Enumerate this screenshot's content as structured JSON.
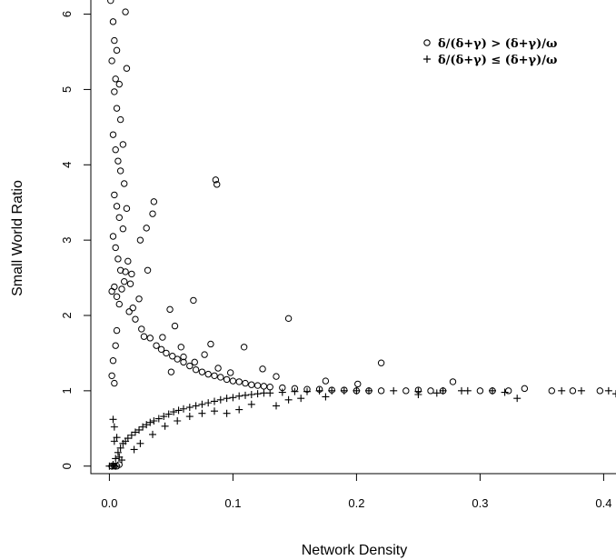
{
  "chart_data": {
    "type": "scatter",
    "title": "",
    "xlabel": "Network Density",
    "ylabel": "Small World Ratio",
    "xlim": [
      -0.015,
      0.41
    ],
    "ylim": [
      -0.1,
      6.2
    ],
    "x_ticks": [
      0.0,
      0.1,
      0.2,
      0.3,
      0.4
    ],
    "x_tick_labels": [
      "0.0",
      "0.1",
      "0.2",
      "0.3",
      "0.4"
    ],
    "y_ticks": [
      0,
      1,
      2,
      3,
      4,
      5,
      6
    ],
    "y_tick_labels": [
      "0",
      "1",
      "2",
      "3",
      "4",
      "5",
      "6"
    ],
    "grid": false,
    "legend_position": "top-right",
    "series": [
      {
        "name": "δ/(δ+γ) > (δ+γ)/ω",
        "marker": "circle",
        "points": [
          [
            0.001,
            6.18
          ],
          [
            0.003,
            5.9
          ],
          [
            0.006,
            5.52
          ],
          [
            0.013,
            6.03
          ],
          [
            0.002,
            5.38
          ],
          [
            0.004,
            5.65
          ],
          [
            0.005,
            5.14
          ],
          [
            0.008,
            5.07
          ],
          [
            0.014,
            5.28
          ],
          [
            0.004,
            4.97
          ],
          [
            0.006,
            4.75
          ],
          [
            0.009,
            4.6
          ],
          [
            0.011,
            4.27
          ],
          [
            0.003,
            4.4
          ],
          [
            0.005,
            4.2
          ],
          [
            0.007,
            4.05
          ],
          [
            0.009,
            3.92
          ],
          [
            0.012,
            3.75
          ],
          [
            0.004,
            3.6
          ],
          [
            0.006,
            3.45
          ],
          [
            0.008,
            3.3
          ],
          [
            0.011,
            3.15
          ],
          [
            0.014,
            3.42
          ],
          [
            0.003,
            3.05
          ],
          [
            0.005,
            2.9
          ],
          [
            0.007,
            2.75
          ],
          [
            0.009,
            2.6
          ],
          [
            0.012,
            2.45
          ],
          [
            0.015,
            2.72
          ],
          [
            0.018,
            2.55
          ],
          [
            0.004,
            2.38
          ],
          [
            0.006,
            2.25
          ],
          [
            0.01,
            2.35
          ],
          [
            0.013,
            2.58
          ],
          [
            0.017,
            2.42
          ],
          [
            0.002,
            2.32
          ],
          [
            0.008,
            2.15
          ],
          [
            0.016,
            2.05
          ],
          [
            0.019,
            2.1
          ],
          [
            0.021,
            1.95
          ],
          [
            0.024,
            2.22
          ],
          [
            0.025,
            3.0
          ],
          [
            0.03,
            3.16
          ],
          [
            0.031,
            2.6
          ],
          [
            0.035,
            3.35
          ],
          [
            0.036,
            3.51
          ],
          [
            0.026,
            1.82
          ],
          [
            0.028,
            1.72
          ],
          [
            0.033,
            1.7
          ],
          [
            0.038,
            1.6
          ],
          [
            0.042,
            1.55
          ],
          [
            0.046,
            1.5
          ],
          [
            0.051,
            1.46
          ],
          [
            0.055,
            1.42
          ],
          [
            0.06,
            1.38
          ],
          [
            0.065,
            1.33
          ],
          [
            0.07,
            1.28
          ],
          [
            0.075,
            1.25
          ],
          [
            0.08,
            1.22
          ],
          [
            0.085,
            1.2
          ],
          [
            0.086,
            3.8
          ],
          [
            0.087,
            3.74
          ],
          [
            0.068,
            2.2
          ],
          [
            0.049,
            2.08
          ],
          [
            0.109,
            1.58
          ],
          [
            0.145,
            1.96
          ],
          [
            0.22,
            1.37
          ],
          [
            0.09,
            1.18
          ],
          [
            0.095,
            1.15
          ],
          [
            0.1,
            1.13
          ],
          [
            0.105,
            1.12
          ],
          [
            0.11,
            1.1
          ],
          [
            0.115,
            1.08
          ],
          [
            0.12,
            1.07
          ],
          [
            0.125,
            1.06
          ],
          [
            0.13,
            1.05
          ],
          [
            0.14,
            1.04
          ],
          [
            0.15,
            1.03
          ],
          [
            0.16,
            1.02
          ],
          [
            0.17,
            1.02
          ],
          [
            0.18,
            1.01
          ],
          [
            0.19,
            1.01
          ],
          [
            0.2,
            1.0
          ],
          [
            0.21,
            1.0
          ],
          [
            0.22,
            1.0
          ],
          [
            0.24,
            1.0
          ],
          [
            0.25,
            1.01
          ],
          [
            0.26,
            1.0
          ],
          [
            0.27,
            1.0
          ],
          [
            0.278,
            1.12
          ],
          [
            0.3,
            1.0
          ],
          [
            0.31,
            1.0
          ],
          [
            0.323,
            1.0
          ],
          [
            0.336,
            1.03
          ],
          [
            0.358,
            1.0
          ],
          [
            0.375,
            1.0
          ],
          [
            0.397,
            1.0
          ],
          [
            0.002,
            1.2
          ],
          [
            0.004,
            1.1
          ],
          [
            0.003,
            1.4
          ],
          [
            0.005,
            1.6
          ],
          [
            0.006,
            1.8
          ],
          [
            0.002,
            0.0
          ],
          [
            0.004,
            0.0
          ],
          [
            0.006,
            0.0
          ],
          [
            0.008,
            0.02
          ],
          [
            0.058,
            1.58
          ],
          [
            0.077,
            1.48
          ],
          [
            0.082,
            1.62
          ],
          [
            0.124,
            1.29
          ],
          [
            0.043,
            1.71
          ],
          [
            0.053,
            1.86
          ],
          [
            0.06,
            1.45
          ],
          [
            0.069,
            1.38
          ],
          [
            0.088,
            1.3
          ],
          [
            0.098,
            1.24
          ],
          [
            0.135,
            1.19
          ],
          [
            0.175,
            1.13
          ],
          [
            0.201,
            1.09
          ],
          [
            0.05,
            1.25
          ]
        ]
      },
      {
        "name": "δ/(δ+γ) ≤ (δ+γ)/ω",
        "marker": "plus",
        "points": [
          [
            0.0,
            0.0
          ],
          [
            0.003,
            0.02
          ],
          [
            0.005,
            0.1
          ],
          [
            0.007,
            0.18
          ],
          [
            0.009,
            0.24
          ],
          [
            0.011,
            0.3
          ],
          [
            0.013,
            0.33
          ],
          [
            0.015,
            0.37
          ],
          [
            0.018,
            0.41
          ],
          [
            0.021,
            0.45
          ],
          [
            0.024,
            0.48
          ],
          [
            0.027,
            0.52
          ],
          [
            0.03,
            0.55
          ],
          [
            0.033,
            0.58
          ],
          [
            0.036,
            0.6
          ],
          [
            0.04,
            0.63
          ],
          [
            0.044,
            0.66
          ],
          [
            0.048,
            0.69
          ],
          [
            0.052,
            0.72
          ],
          [
            0.056,
            0.74
          ],
          [
            0.06,
            0.76
          ],
          [
            0.065,
            0.78
          ],
          [
            0.07,
            0.8
          ],
          [
            0.075,
            0.82
          ],
          [
            0.08,
            0.84
          ],
          [
            0.085,
            0.86
          ],
          [
            0.09,
            0.88
          ],
          [
            0.095,
            0.9
          ],
          [
            0.1,
            0.91
          ],
          [
            0.105,
            0.93
          ],
          [
            0.11,
            0.94
          ],
          [
            0.115,
            0.95
          ],
          [
            0.12,
            0.96
          ],
          [
            0.125,
            0.97
          ],
          [
            0.13,
            0.97
          ],
          [
            0.14,
            0.98
          ],
          [
            0.15,
            0.99
          ],
          [
            0.16,
            0.99
          ],
          [
            0.17,
            1.0
          ],
          [
            0.18,
            1.0
          ],
          [
            0.19,
            1.0
          ],
          [
            0.2,
            1.0
          ],
          [
            0.21,
            1.0
          ],
          [
            0.23,
            1.0
          ],
          [
            0.25,
            0.99
          ],
          [
            0.27,
            1.0
          ],
          [
            0.29,
            1.0
          ],
          [
            0.31,
            1.0
          ],
          [
            0.32,
            0.98
          ],
          [
            0.33,
            0.9
          ],
          [
            0.366,
            1.0
          ],
          [
            0.382,
            1.0
          ],
          [
            0.404,
            1.0
          ],
          [
            0.41,
            0.96
          ],
          [
            0.003,
            0.62
          ],
          [
            0.004,
            0.52
          ],
          [
            0.006,
            0.38
          ],
          [
            0.004,
            0.33
          ],
          [
            0.008,
            0.12
          ],
          [
            0.01,
            0.08
          ],
          [
            0.002,
            0.0
          ],
          [
            0.005,
            0.0
          ],
          [
            0.02,
            0.22
          ],
          [
            0.025,
            0.3
          ],
          [
            0.035,
            0.42
          ],
          [
            0.045,
            0.53
          ],
          [
            0.055,
            0.6
          ],
          [
            0.065,
            0.66
          ],
          [
            0.075,
            0.7
          ],
          [
            0.085,
            0.73
          ],
          [
            0.095,
            0.7
          ],
          [
            0.105,
            0.75
          ],
          [
            0.115,
            0.82
          ],
          [
            0.135,
            0.8
          ],
          [
            0.145,
            0.88
          ],
          [
            0.155,
            0.9
          ],
          [
            0.175,
            0.92
          ],
          [
            0.25,
            0.95
          ],
          [
            0.265,
            0.97
          ],
          [
            0.285,
            1.0
          ]
        ]
      }
    ]
  }
}
